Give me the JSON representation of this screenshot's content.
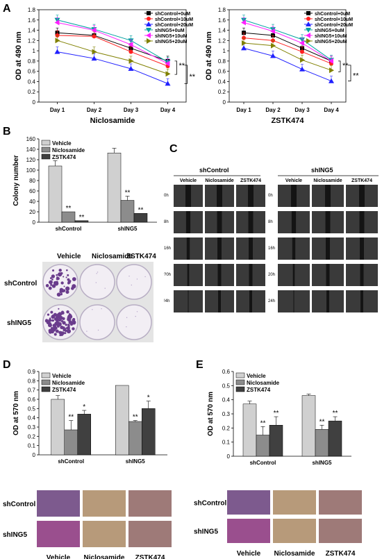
{
  "panels": {
    "A": "A",
    "B": "B",
    "C": "C",
    "D": "D",
    "E": "E"
  },
  "significance": "**",
  "significance_single": "*",
  "chart_data": [
    {
      "id": "A1",
      "type": "line",
      "xlabel": "Niclosamide",
      "ylabel": "OD at 490 nm",
      "ylim": [
        0,
        1.8
      ],
      "yticks": [
        "0",
        "0.2",
        "0.4",
        "0.6",
        "0.8",
        "1",
        "1.2",
        "1.4",
        "1.6",
        "1.8"
      ],
      "categories": [
        "Day 1",
        "Day 2",
        "Day 3",
        "Day 4"
      ],
      "legend_position": "top-right",
      "series": [
        {
          "name": "shControl+0uM",
          "color": "#000000",
          "marker": "square",
          "values": [
            1.35,
            1.3,
            1.05,
            0.8
          ]
        },
        {
          "name": "shControl+10uM",
          "color": "#ff2020",
          "marker": "circle",
          "values": [
            1.3,
            1.28,
            0.98,
            0.7
          ]
        },
        {
          "name": "shControl+20uM",
          "color": "#2020ff",
          "marker": "triangle",
          "values": [
            0.98,
            0.85,
            0.65,
            0.36
          ]
        },
        {
          "name": "shING5+0uM",
          "color": "#00a0a0",
          "marker": "tridown",
          "values": [
            1.6,
            1.42,
            1.2,
            0.78
          ]
        },
        {
          "name": "shING5+10uM",
          "color": "#ff20ff",
          "marker": "triangle-left",
          "values": [
            1.55,
            1.4,
            1.12,
            0.75
          ]
        },
        {
          "name": "shING5+20uM",
          "color": "#808000",
          "marker": "triangle-right",
          "values": [
            1.2,
            0.98,
            0.8,
            0.55
          ]
        }
      ]
    },
    {
      "id": "A2",
      "type": "line",
      "xlabel": "ZSTK474",
      "ylabel": "OD at 490 nm",
      "ylim": [
        0,
        1.8
      ],
      "yticks": [
        "0",
        "0.2",
        "0.4",
        "0.6",
        "0.8",
        "1",
        "1.2",
        "1.4",
        "1.6",
        "1.8"
      ],
      "categories": [
        "Day 1",
        "Day 2",
        "Day 3",
        "Day 4"
      ],
      "legend_position": "top-right",
      "series": [
        {
          "name": "shControl+0uM",
          "color": "#000000",
          "marker": "square",
          "values": [
            1.35,
            1.3,
            1.05,
            0.8
          ]
        },
        {
          "name": "shControl+10uM",
          "color": "#ff2020",
          "marker": "circle",
          "values": [
            1.25,
            1.2,
            0.98,
            0.75
          ]
        },
        {
          "name": "shControl+20uM",
          "color": "#2020ff",
          "marker": "triangle",
          "values": [
            1.05,
            0.9,
            0.64,
            0.41
          ]
        },
        {
          "name": "shING5+0uM",
          "color": "#00a0a0",
          "marker": "tridown",
          "values": [
            1.6,
            1.42,
            1.22,
            0.82
          ]
        },
        {
          "name": "shING5+10uM",
          "color": "#ff20ff",
          "marker": "triangle-left",
          "values": [
            1.55,
            1.38,
            1.15,
            0.8
          ]
        },
        {
          "name": "shING5+20uM",
          "color": "#808000",
          "marker": "triangle-right",
          "values": [
            1.15,
            1.1,
            0.82,
            0.62
          ]
        }
      ]
    },
    {
      "id": "B",
      "type": "bar",
      "ylabel": "Colony number",
      "ylim": [
        0,
        160
      ],
      "yticks": [
        "0",
        "20",
        "40",
        "60",
        "80",
        "100",
        "120",
        "140",
        "160"
      ],
      "categories": [
        "shControl",
        "shING5"
      ],
      "legend_position": "top-left",
      "series": [
        {
          "name": "Vehicle",
          "color": "#d0d0d0",
          "values": [
            108,
            133
          ],
          "errors": [
            10,
            9
          ]
        },
        {
          "name": "Niclosamide",
          "color": "#8c8c8c",
          "values": [
            20,
            42
          ],
          "errors": [
            0,
            8
          ]
        },
        {
          "name": "ZSTK474",
          "color": "#404040",
          "values": [
            3,
            17
          ],
          "errors": [
            0,
            0
          ]
        }
      ],
      "annotations": [
        [
          "",
          "**",
          "**"
        ],
        [
          "",
          "**",
          "**"
        ]
      ]
    },
    {
      "id": "D",
      "type": "bar",
      "ylabel": "OD at 570 nm",
      "ylim": [
        0,
        0.9
      ],
      "yticks": [
        "0",
        "0.1",
        "0.2",
        "0.3",
        "0.4",
        "0.5",
        "0.6",
        "0.7",
        "0.8",
        "0.9"
      ],
      "categories": [
        "shControl",
        "shING5"
      ],
      "legend_position": "top-left",
      "series": [
        {
          "name": "Vehicle",
          "color": "#d0d0d0",
          "values": [
            0.6,
            0.75
          ],
          "errors": [
            0.04,
            0.0
          ]
        },
        {
          "name": "Niclosamide",
          "color": "#8c8c8c",
          "values": [
            0.27,
            0.36
          ],
          "errors": [
            0.1,
            0.01
          ]
        },
        {
          "name": "ZSTK474",
          "color": "#404040",
          "values": [
            0.44,
            0.5
          ],
          "errors": [
            0.04,
            0.08
          ]
        }
      ],
      "annotations": [
        [
          "",
          "**",
          "*"
        ],
        [
          "",
          "**",
          "*"
        ]
      ]
    },
    {
      "id": "E",
      "type": "bar",
      "ylabel": "OD at 570 nm",
      "ylim": [
        0,
        0.6
      ],
      "yticks": [
        "0",
        "0.1",
        "0.2",
        "0.3",
        "0.4",
        "0.5",
        "0.6"
      ],
      "categories": [
        "shControl",
        "shING5"
      ],
      "legend_position": "top-left",
      "series": [
        {
          "name": "Vehicle",
          "color": "#d0d0d0",
          "values": [
            0.37,
            0.43
          ],
          "errors": [
            0.02,
            0.01
          ]
        },
        {
          "name": "Niclosamide",
          "color": "#8c8c8c",
          "values": [
            0.15,
            0.19
          ],
          "errors": [
            0.06,
            0.03
          ]
        },
        {
          "name": "ZSTK474",
          "color": "#404040",
          "values": [
            0.22,
            0.25
          ],
          "errors": [
            0.06,
            0.03
          ]
        }
      ],
      "annotations": [
        [
          "",
          "**",
          "**"
        ],
        [
          "",
          "**",
          "**"
        ]
      ]
    }
  ],
  "colony_plate": {
    "columns": [
      "Vehicle",
      "Niclosamide",
      "ZSTK474"
    ],
    "rows": [
      "shControl",
      "shING5"
    ]
  },
  "wound": {
    "groups": [
      "shControl",
      "shING5"
    ],
    "columns": [
      "Vehicle",
      "Niclosamide",
      "ZSTK474"
    ],
    "times": [
      "0h",
      "8h",
      "16h",
      "20h",
      "24h"
    ],
    "time_labels_left": [
      "0h",
      "8h",
      "16h",
      "?0h",
      "!4h"
    ]
  },
  "transwell": {
    "columns": [
      "Vehicle",
      "Niclosamide",
      "ZSTK474"
    ],
    "rows": [
      "shControl",
      "shING5"
    ]
  }
}
